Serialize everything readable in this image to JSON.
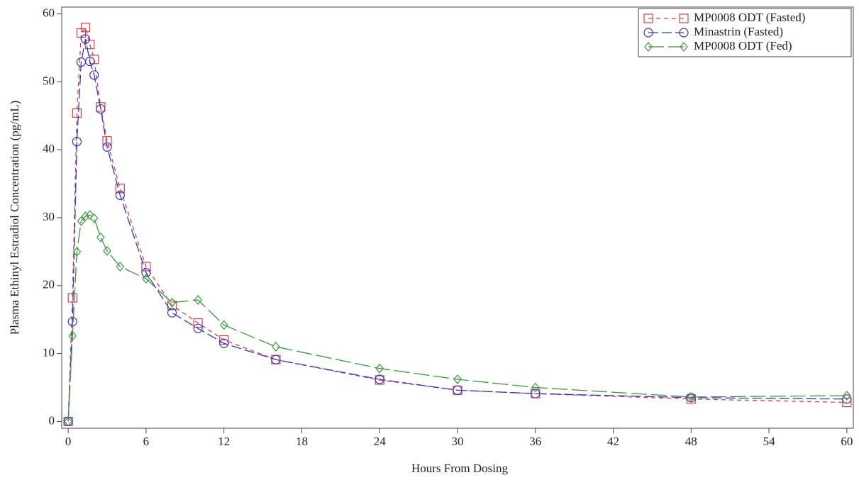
{
  "chart_data": {
    "type": "line",
    "xlabel": "Hours From Dosing",
    "ylabel": "Plasma Ethinyl Estradiol Concentration (pg/mL)",
    "x": [
      0,
      0.33,
      0.67,
      1,
      1.33,
      1.67,
      2,
      2.5,
      3,
      4,
      6,
      8,
      10,
      12,
      16,
      24,
      30,
      36,
      48,
      60
    ],
    "series": [
      {
        "name": "MP0008 ODT (Fasted)",
        "color": "#e0404a",
        "marker": "square",
        "dash": "6 5",
        "values": [
          0,
          18.2,
          45.4,
          57.2,
          58,
          55.5,
          53.3,
          46.3,
          41.3,
          34.3,
          22.8,
          17.1,
          14.5,
          12,
          9.1,
          6.1,
          4.6,
          4.1,
          3.3,
          2.8
        ]
      },
      {
        "name": "Minastrin (Fasted)",
        "color": "#3535c8",
        "marker": "circle",
        "dash": "14 5",
        "values": [
          0,
          14.7,
          41.2,
          52.9,
          56.3,
          53,
          51,
          46,
          40.4,
          33.3,
          21.9,
          16,
          13.7,
          11.5,
          9.1,
          6.2,
          4.6,
          4.1,
          3.5,
          3.3
        ]
      },
      {
        "name": "MP0008 ODT (Fed)",
        "color": "#3a9a3a",
        "marker": "diamond",
        "dash": "22 6",
        "values": [
          0,
          12.6,
          25,
          29.5,
          30.2,
          30.4,
          29.9,
          27.1,
          25.1,
          22.8,
          21,
          17.5,
          17.9,
          14.2,
          11,
          7.8,
          6.2,
          5,
          3.6,
          3.8
        ]
      }
    ],
    "xlim": [
      -0.5,
      60.5
    ],
    "xticks": [
      0,
      6,
      12,
      18,
      24,
      30,
      36,
      42,
      48,
      54,
      60
    ],
    "ylim": [
      -1,
      61
    ],
    "yticks": [
      0,
      10,
      20,
      30,
      40,
      50,
      60
    ],
    "legend": "upper right"
  }
}
